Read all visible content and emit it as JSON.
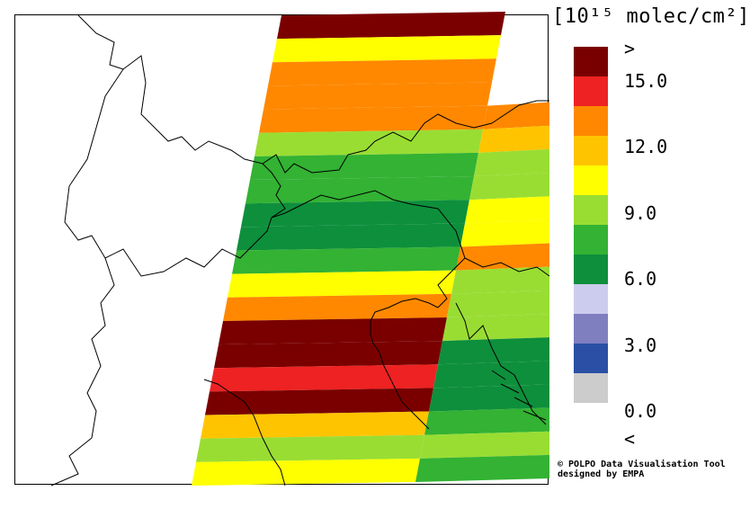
{
  "legend": {
    "unit_label": "[10¹⁵ molec/cm²]",
    "colors": [
      "#7a0000",
      "#ee2222",
      "#ff8800",
      "#ffc400",
      "#ffff00",
      "#99dd33",
      "#33b233",
      "#0e8f3c",
      "#ccccee",
      "#7f7fc0",
      "#2a4fa5",
      "#cccccc"
    ],
    "tick_labels": [
      ">",
      "15.0",
      "12.0",
      "9.0",
      "6.0",
      "3.0",
      "0.0",
      "<"
    ]
  },
  "credit": {
    "line1": "© POLPO Data Visualisation Tool",
    "line2": "designed by EMPA"
  },
  "map": {
    "region": "Alps / Northern Italy",
    "swath_rows": [
      {
        "main": "#7a0000",
        "east": "#7a0000"
      },
      {
        "main": "#ffff00",
        "east": "#ffff00"
      },
      {
        "main": "#ff8800",
        "east": "#ffff00"
      },
      {
        "main": "#ff8800",
        "east": "#ff8800"
      },
      {
        "main": "#ff8800",
        "east": "#ff8800"
      },
      {
        "main": "#99dd33",
        "east": "#ffc400"
      },
      {
        "main": "#33b233",
        "east": "#99dd33"
      },
      {
        "main": "#33b233",
        "east": "#99dd33"
      },
      {
        "main": "#0e8f3c",
        "east": "#ffff00"
      },
      {
        "main": "#0e8f3c",
        "east": "#ffff00"
      },
      {
        "main": "#33b233",
        "east": "#ff8800"
      },
      {
        "main": "#ffff00",
        "east": "#99dd33"
      },
      {
        "main": "#ff8800",
        "east": "#99dd33"
      },
      {
        "main": "#7a0000",
        "east": "#99dd33"
      },
      {
        "main": "#7a0000",
        "east": "#0e8f3c"
      },
      {
        "main": "#ee2222",
        "east": "#0e8f3c"
      },
      {
        "main": "#7a0000",
        "east": "#0e8f3c"
      },
      {
        "main": "#ffc400",
        "east": "#33b233"
      },
      {
        "main": "#99dd33",
        "east": "#99dd33"
      },
      {
        "main": "#ffff00",
        "east": "#33b233"
      }
    ]
  }
}
